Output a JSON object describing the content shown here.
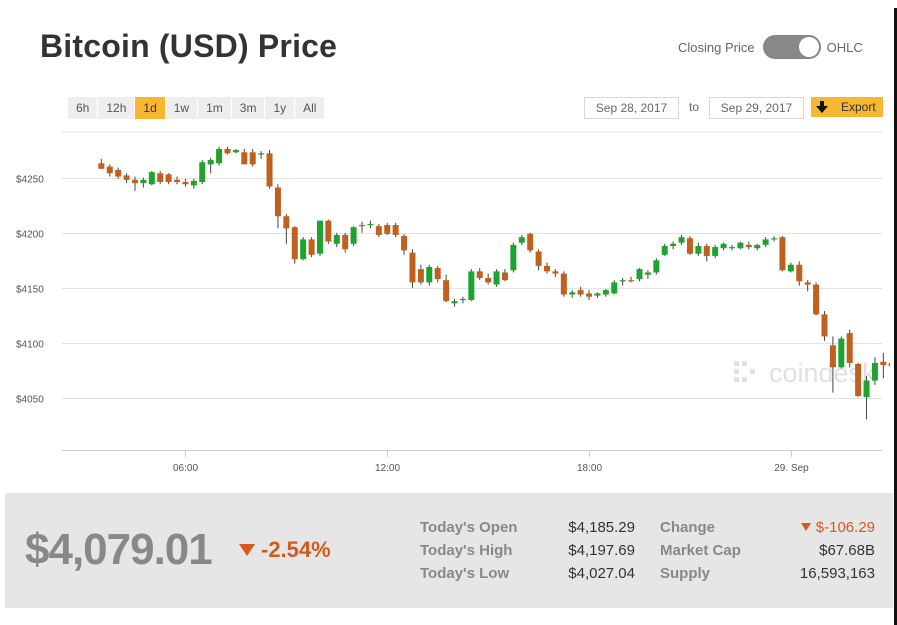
{
  "title": "Bitcoin (USD) Price",
  "toggle": {
    "left_label": "Closing Price",
    "right_label": "OHLC",
    "selected": "OHLC"
  },
  "ranges": [
    {
      "label": "6h",
      "active": false
    },
    {
      "label": "12h",
      "active": false
    },
    {
      "label": "1d",
      "active": true
    },
    {
      "label": "1w",
      "active": false
    },
    {
      "label": "1m",
      "active": false
    },
    {
      "label": "3m",
      "active": false
    },
    {
      "label": "1y",
      "active": false
    },
    {
      "label": "All",
      "active": false
    }
  ],
  "date_from": "Sep 28, 2017",
  "date_to_label": "to",
  "date_to": "Sep 29, 2017",
  "export_label": "Export",
  "watermark": "coindesk",
  "colors": {
    "up": "#1fa32f",
    "down": "#c0601f",
    "accent": "#f7b731",
    "negative": "#d35a1a"
  },
  "summary": {
    "price": "$4,079.01",
    "change_pct": "-2.54%",
    "todays_open_label": "Today's Open",
    "todays_open": "$4,185.29",
    "todays_high_label": "Today's High",
    "todays_high": "$4,197.69",
    "todays_low_label": "Today's Low",
    "todays_low": "$4,027.04",
    "change_label": "Change",
    "change": "$-106.29",
    "market_cap_label": "Market Cap",
    "market_cap": "$67.68B",
    "supply_label": "Supply",
    "supply": "16,593,163"
  },
  "chart_data": {
    "type": "candlestick",
    "title": "",
    "xlabel": "",
    "ylabel": "",
    "x_ticks": [
      "06:00",
      "12:00",
      "18:00",
      "29. Sep"
    ],
    "x_tick_positions": [
      2.5,
      8.5,
      14.5,
      20.5
    ],
    "y_ticks": [
      "$4250",
      "$4200",
      "$4150",
      "$4100",
      "$4050"
    ],
    "y_tick_values": [
      4250,
      4200,
      4150,
      4100,
      4050
    ],
    "ylim": [
      4003,
      4295
    ],
    "xlim": [
      -1.17,
      23.21
    ],
    "x_unit": "hours since Sep 28, 2017 03:30",
    "grid": true,
    "candles": [
      {
        "o": 4263,
        "h": 4267,
        "l": 4258,
        "c": 4258
      },
      {
        "o": 4260,
        "h": 4262,
        "l": 4251,
        "c": 4254
      },
      {
        "o": 4257,
        "h": 4259,
        "l": 4249,
        "c": 4251
      },
      {
        "o": 4252,
        "h": 4254,
        "l": 4245,
        "c": 4248
      },
      {
        "o": 4248,
        "h": 4251,
        "l": 4238,
        "c": 4245
      },
      {
        "o": 4245,
        "h": 4250,
        "l": 4241,
        "c": 4248
      },
      {
        "o": 4244,
        "h": 4256,
        "l": 4243,
        "c": 4255
      },
      {
        "o": 4254,
        "h": 4256,
        "l": 4244,
        "c": 4246
      },
      {
        "o": 4253,
        "h": 4254,
        "l": 4244,
        "c": 4246
      },
      {
        "o": 4248,
        "h": 4251,
        "l": 4244,
        "c": 4246
      },
      {
        "o": 4246,
        "h": 4249,
        "l": 4242,
        "c": 4244
      },
      {
        "o": 4243,
        "h": 4249,
        "l": 4240,
        "c": 4247
      },
      {
        "o": 4246,
        "h": 4266,
        "l": 4244,
        "c": 4264
      },
      {
        "o": 4262,
        "h": 4268,
        "l": 4254,
        "c": 4266
      },
      {
        "o": 4263,
        "h": 4278,
        "l": 4261,
        "c": 4276
      },
      {
        "o": 4276,
        "h": 4278,
        "l": 4271,
        "c": 4272
      },
      {
        "o": 4273,
        "h": 4276,
        "l": 4272,
        "c": 4275
      },
      {
        "o": 4273,
        "h": 4276,
        "l": 4262,
        "c": 4262
      },
      {
        "o": 4273,
        "h": 4276,
        "l": 4260,
        "c": 4262
      },
      {
        "o": 4272,
        "h": 4274,
        "l": 4267,
        "c": 4272
      },
      {
        "o": 4272,
        "h": 4275,
        "l": 4240,
        "c": 4242
      },
      {
        "o": 4241,
        "h": 4244,
        "l": 4204,
        "c": 4215
      },
      {
        "o": 4215,
        "h": 4217,
        "l": 4190,
        "c": 4204
      },
      {
        "o": 4205,
        "h": 4206,
        "l": 4172,
        "c": 4176
      },
      {
        "o": 4176,
        "h": 4196,
        "l": 4175,
        "c": 4194
      },
      {
        "o": 4194,
        "h": 4196,
        "l": 4178,
        "c": 4180
      },
      {
        "o": 4181,
        "h": 4211,
        "l": 4179,
        "c": 4211
      },
      {
        "o": 4211,
        "h": 4212,
        "l": 4190,
        "c": 4192
      },
      {
        "o": 4190,
        "h": 4200,
        "l": 4187,
        "c": 4198
      },
      {
        "o": 4198,
        "h": 4200,
        "l": 4182,
        "c": 4185
      },
      {
        "o": 4190,
        "h": 4206,
        "l": 4188,
        "c": 4205
      },
      {
        "o": 4207,
        "h": 4210,
        "l": 4200,
        "c": 4206
      },
      {
        "o": 4208,
        "h": 4211,
        "l": 4204,
        "c": 4208
      },
      {
        "o": 4206,
        "h": 4208,
        "l": 4196,
        "c": 4198
      },
      {
        "o": 4207,
        "h": 4209,
        "l": 4198,
        "c": 4199
      },
      {
        "o": 4207,
        "h": 4209,
        "l": 4196,
        "c": 4198
      },
      {
        "o": 4197,
        "h": 4199,
        "l": 4180,
        "c": 4184
      },
      {
        "o": 4182,
        "h": 4185,
        "l": 4150,
        "c": 4155
      },
      {
        "o": 4167,
        "h": 4171,
        "l": 4153,
        "c": 4155
      },
      {
        "o": 4155,
        "h": 4171,
        "l": 4152,
        "c": 4169
      },
      {
        "o": 4168,
        "h": 4170,
        "l": 4155,
        "c": 4158
      },
      {
        "o": 4157,
        "h": 4162,
        "l": 4137,
        "c": 4138
      },
      {
        "o": 4136,
        "h": 4140,
        "l": 4133,
        "c": 4138
      },
      {
        "o": 4139,
        "h": 4142,
        "l": 4136,
        "c": 4140
      },
      {
        "o": 4139,
        "h": 4167,
        "l": 4138,
        "c": 4165
      },
      {
        "o": 4165,
        "h": 4168,
        "l": 4157,
        "c": 4159
      },
      {
        "o": 4159,
        "h": 4163,
        "l": 4153,
        "c": 4155
      },
      {
        "o": 4153,
        "h": 4167,
        "l": 4151,
        "c": 4165
      },
      {
        "o": 4164,
        "h": 4167,
        "l": 4156,
        "c": 4157
      },
      {
        "o": 4166,
        "h": 4191,
        "l": 4164,
        "c": 4189
      },
      {
        "o": 4191,
        "h": 4198,
        "l": 4189,
        "c": 4196
      },
      {
        "o": 4199,
        "h": 4200,
        "l": 4182,
        "c": 4184
      },
      {
        "o": 4183,
        "h": 4185,
        "l": 4166,
        "c": 4170
      },
      {
        "o": 4170,
        "h": 4173,
        "l": 4163,
        "c": 4165
      },
      {
        "o": 4165,
        "h": 4167,
        "l": 4160,
        "c": 4163
      },
      {
        "o": 4163,
        "h": 4165,
        "l": 4142,
        "c": 4144
      },
      {
        "o": 4144,
        "h": 4148,
        "l": 4141,
        "c": 4146
      },
      {
        "o": 4148,
        "h": 4151,
        "l": 4142,
        "c": 4144
      },
      {
        "o": 4145,
        "h": 4148,
        "l": 4139,
        "c": 4142
      },
      {
        "o": 4143,
        "h": 4146,
        "l": 4141,
        "c": 4145
      },
      {
        "o": 4144,
        "h": 4149,
        "l": 4142,
        "c": 4148
      },
      {
        "o": 4145,
        "h": 4157,
        "l": 4144,
        "c": 4155
      },
      {
        "o": 4156,
        "h": 4159,
        "l": 4152,
        "c": 4157
      },
      {
        "o": 4157,
        "h": 4160,
        "l": 4155,
        "c": 4156
      },
      {
        "o": 4158,
        "h": 4168,
        "l": 4156,
        "c": 4167
      },
      {
        "o": 4162,
        "h": 4166,
        "l": 4158,
        "c": 4164
      },
      {
        "o": 4164,
        "h": 4177,
        "l": 4162,
        "c": 4175
      },
      {
        "o": 4180,
        "h": 4190,
        "l": 4179,
        "c": 4188
      },
      {
        "o": 4188,
        "h": 4192,
        "l": 4185,
        "c": 4190
      },
      {
        "o": 4191,
        "h": 4198,
        "l": 4189,
        "c": 4196
      },
      {
        "o": 4195,
        "h": 4197,
        "l": 4180,
        "c": 4181
      },
      {
        "o": 4181,
        "h": 4191,
        "l": 4179,
        "c": 4188
      },
      {
        "o": 4188,
        "h": 4190,
        "l": 4174,
        "c": 4179
      },
      {
        "o": 4179,
        "h": 4189,
        "l": 4177,
        "c": 4187
      },
      {
        "o": 4186,
        "h": 4191,
        "l": 4184,
        "c": 4190
      },
      {
        "o": 4186,
        "h": 4189,
        "l": 4184,
        "c": 4187
      },
      {
        "o": 4186,
        "h": 4192,
        "l": 4185,
        "c": 4191
      },
      {
        "o": 4189,
        "h": 4192,
        "l": 4185,
        "c": 4187
      },
      {
        "o": 4186,
        "h": 4190,
        "l": 4184,
        "c": 4189
      },
      {
        "o": 4189,
        "h": 4196,
        "l": 4187,
        "c": 4194
      },
      {
        "o": 4194,
        "h": 4197,
        "l": 4192,
        "c": 4195
      },
      {
        "o": 4196,
        "h": 4197,
        "l": 4165,
        "c": 4166
      },
      {
        "o": 4165,
        "h": 4173,
        "l": 4164,
        "c": 4171
      },
      {
        "o": 4171,
        "h": 4174,
        "l": 4152,
        "c": 4156
      },
      {
        "o": 4155,
        "h": 4157,
        "l": 4147,
        "c": 4153
      },
      {
        "o": 4153,
        "h": 4155,
        "l": 4125,
        "c": 4126
      },
      {
        "o": 4126,
        "h": 4129,
        "l": 4102,
        "c": 4106
      },
      {
        "o": 4098,
        "h": 4106,
        "l": 4055,
        "c": 4078
      },
      {
        "o": 4078,
        "h": 4106,
        "l": 4077,
        "c": 4104
      },
      {
        "o": 4109,
        "h": 4112,
        "l": 4078,
        "c": 4082
      },
      {
        "o": 4081,
        "h": 4082,
        "l": 4051,
        "c": 4052
      },
      {
        "o": 4051,
        "h": 4070,
        "l": 4031,
        "c": 4066
      },
      {
        "o": 4066,
        "h": 4087,
        "l": 4062,
        "c": 4082
      },
      {
        "o": 4083,
        "h": 4091,
        "l": 4068,
        "c": 4080
      },
      {
        "o": 4079,
        "h": 4084,
        "l": 4071,
        "c": 4082
      },
      {
        "o": 4077,
        "h": 4090,
        "l": 4075,
        "c": 4087
      },
      {
        "o": 4086,
        "h": 4089,
        "l": 4077,
        "c": 4079
      }
    ]
  }
}
